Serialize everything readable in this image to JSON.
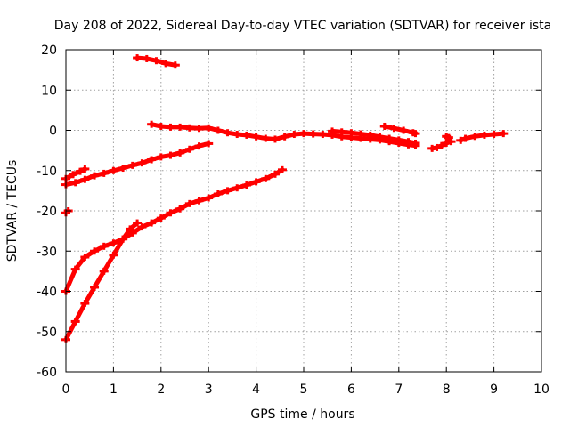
{
  "chart_data": {
    "type": "scatter",
    "title": "Day 208 of 2022, Sidereal Day-to-day VTEC variation (SDTVAR) for receiver ista",
    "xlabel": "GPS time / hours",
    "ylabel": "SDTVAR / TECUs",
    "xlim": [
      0,
      10
    ],
    "ylim": [
      -60,
      20
    ],
    "xticks": [
      "0",
      "1",
      "2",
      "3",
      "4",
      "5",
      "6",
      "7",
      "8",
      "9",
      "10"
    ],
    "yticks": [
      "20",
      "10",
      "0",
      "-10",
      "-20",
      "-30",
      "-40",
      "-50",
      "-60"
    ],
    "grid": true,
    "marker_color": "#ff0000",
    "series": [
      {
        "x": [
          0.0,
          0.2,
          0.4,
          0.6,
          0.8,
          1.0,
          1.2,
          1.4,
          1.6,
          1.8,
          2.0,
          2.2,
          2.4,
          2.6,
          2.8,
          3.0,
          3.2,
          3.4,
          3.6,
          3.8,
          4.0,
          4.2,
          4.4,
          4.55
        ],
        "y": [
          -40.0,
          -34.5,
          -31.5,
          -30.0,
          -28.8,
          -28.0,
          -27.0,
          -25.5,
          -24.0,
          -23.0,
          -21.8,
          -20.5,
          -19.5,
          -18.2,
          -17.5,
          -16.8,
          -15.8,
          -15.0,
          -14.3,
          -13.6,
          -12.8,
          -12.0,
          -10.9,
          -9.8
        ]
      },
      {
        "x": [
          0.0,
          0.2,
          0.4,
          0.6,
          0.8,
          1.0,
          1.2,
          1.4,
          1.6,
          1.8,
          2.0,
          2.2,
          2.4,
          2.6,
          2.8,
          3.0
        ],
        "y": [
          -13.5,
          -13.0,
          -12.2,
          -11.3,
          -10.7,
          -10.0,
          -9.4,
          -8.7,
          -8.1,
          -7.3,
          -6.6,
          -6.2,
          -5.6,
          -4.7,
          -3.9,
          -3.3
        ]
      },
      {
        "x": [
          0.0,
          0.2,
          0.4,
          0.6,
          0.8,
          1.0,
          1.2,
          1.35,
          1.5
        ],
        "y": [
          -52.0,
          -47.5,
          -43.0,
          -39.0,
          -35.0,
          -31.0,
          -27.0,
          -24.5,
          -23.0
        ]
      },
      {
        "x": [
          0.0,
          0.15,
          0.3,
          0.4
        ],
        "y": [
          -12.0,
          -11.0,
          -10.2,
          -9.6
        ]
      },
      {
        "x": [
          0.0,
          0.05
        ],
        "y": [
          -20.5,
          -20.0
        ]
      },
      {
        "x": [
          1.5,
          1.7,
          1.9,
          2.1,
          2.3
        ],
        "y": [
          18.0,
          17.8,
          17.3,
          16.6,
          16.2
        ]
      },
      {
        "x": [
          1.8,
          2.0,
          2.2,
          2.4,
          2.6,
          2.8,
          3.0,
          3.2,
          3.4,
          3.6,
          3.8,
          4.0,
          4.2,
          4.4,
          4.6,
          4.8,
          5.0,
          5.2,
          5.4,
          5.6,
          5.8,
          6.0,
          6.2,
          6.4,
          6.6,
          6.8,
          7.0,
          7.2,
          7.35
        ],
        "y": [
          1.5,
          1.0,
          0.8,
          0.8,
          0.6,
          0.5,
          0.6,
          0.0,
          -0.6,
          -1.0,
          -1.2,
          -1.6,
          -2.0,
          -2.2,
          -1.6,
          -1.0,
          -0.8,
          -0.9,
          -1.0,
          -1.2,
          -1.6,
          -1.8,
          -2.0,
          -2.2,
          -2.4,
          -2.8,
          -3.2,
          -3.6,
          -3.8
        ]
      },
      {
        "x": [
          5.6,
          5.8,
          6.0,
          6.2,
          6.4,
          6.6,
          6.8,
          7.0,
          7.2,
          7.35
        ],
        "y": [
          -0.2,
          -0.4,
          -0.6,
          -0.9,
          -1.2,
          -1.6,
          -2.0,
          -2.4,
          -2.8,
          -3.2
        ]
      },
      {
        "x": [
          6.7,
          6.9,
          7.1,
          7.3,
          7.35
        ],
        "y": [
          1.0,
          0.5,
          0.0,
          -0.6,
          -0.8
        ]
      },
      {
        "x": [
          7.7,
          7.8,
          7.9,
          8.0,
          8.1
        ],
        "y": [
          -4.5,
          -4.3,
          -3.8,
          -3.2,
          -2.8
        ]
      },
      {
        "x": [
          8.0,
          8.05
        ],
        "y": [
          -1.5,
          -1.8
        ]
      },
      {
        "x": [
          8.3,
          8.4,
          8.6,
          8.8,
          9.0,
          9.2
        ],
        "y": [
          -2.5,
          -2.0,
          -1.5,
          -1.2,
          -1.0,
          -0.8
        ]
      }
    ]
  }
}
